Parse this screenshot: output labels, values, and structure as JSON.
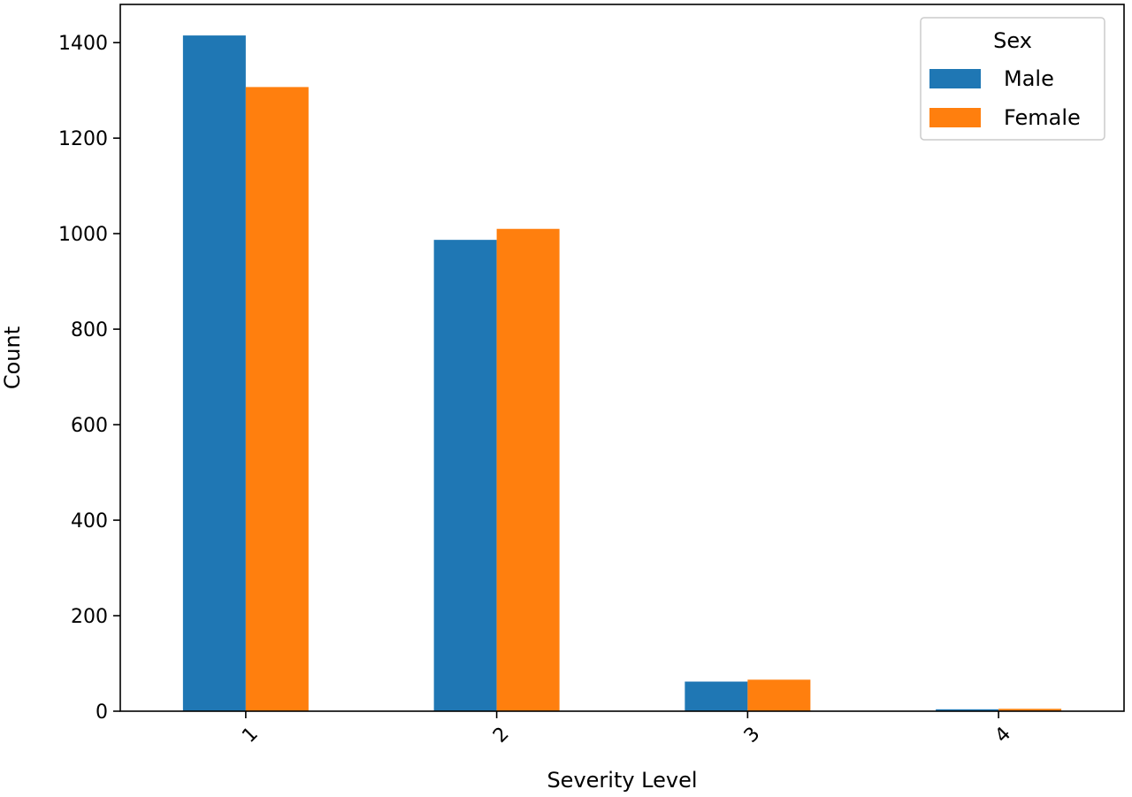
{
  "chart_data": {
    "type": "bar",
    "title": "",
    "xlabel": "Severity Level",
    "ylabel": "Count",
    "categories": [
      "1",
      "2",
      "3",
      "4"
    ],
    "ylim": [
      0,
      1480
    ],
    "yticks": [
      0,
      200,
      400,
      600,
      800,
      1000,
      1200,
      1400
    ],
    "grid": false,
    "legend": {
      "title": "Sex",
      "placement": "top-right"
    },
    "series": [
      {
        "name": "Male",
        "color": "#1f77b4",
        "values": [
          1415,
          987,
          62,
          4
        ]
      },
      {
        "name": "Female",
        "color": "#ff7f0e",
        "values": [
          1307,
          1010,
          66,
          5
        ]
      }
    ]
  }
}
